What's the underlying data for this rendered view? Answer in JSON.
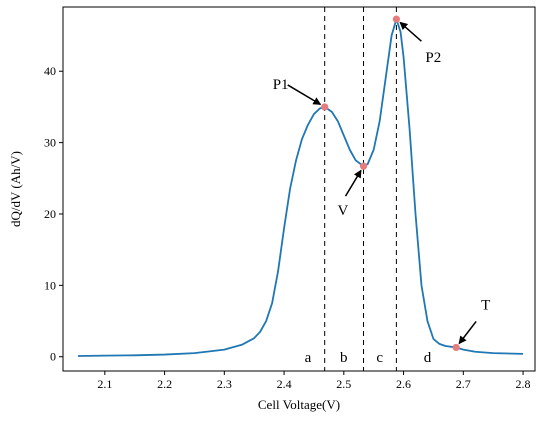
{
  "chart_data": {
    "type": "line",
    "title": "",
    "xlabel": "Cell Voltage(V)",
    "ylabel": "dQ/dV (Ah/V)",
    "xlim": [
      2.03,
      2.82
    ],
    "ylim": [
      -2,
      49
    ],
    "grid": false,
    "x_ticks": [
      2.1,
      2.2,
      2.3,
      2.4,
      2.5,
      2.6,
      2.7,
      2.8
    ],
    "x_tick_labels": [
      "2.1",
      "2.2",
      "2.3",
      "2.4",
      "2.5",
      "2.6",
      "2.7",
      "2.8"
    ],
    "y_ticks": [
      0,
      10,
      20,
      30,
      40
    ],
    "y_tick_labels": [
      "0",
      "10",
      "20",
      "30",
      "40"
    ],
    "series": [
      {
        "color": "#1f77b4",
        "points": [
          [
            2.055,
            0.1
          ],
          [
            2.1,
            0.15
          ],
          [
            2.15,
            0.2
          ],
          [
            2.2,
            0.3
          ],
          [
            2.25,
            0.5
          ],
          [
            2.3,
            1.0
          ],
          [
            2.33,
            1.7
          ],
          [
            2.35,
            2.6
          ],
          [
            2.36,
            3.5
          ],
          [
            2.37,
            5.0
          ],
          [
            2.38,
            7.5
          ],
          [
            2.39,
            12.0
          ],
          [
            2.4,
            18.0
          ],
          [
            2.41,
            23.5
          ],
          [
            2.42,
            27.5
          ],
          [
            2.43,
            30.5
          ],
          [
            2.44,
            32.5
          ],
          [
            2.45,
            34.0
          ],
          [
            2.46,
            34.8
          ],
          [
            2.468,
            35.0
          ],
          [
            2.48,
            34.3
          ],
          [
            2.49,
            33.0
          ],
          [
            2.5,
            31.0
          ],
          [
            2.51,
            29.0
          ],
          [
            2.52,
            27.5
          ],
          [
            2.533,
            26.7
          ],
          [
            2.54,
            27.0
          ],
          [
            2.55,
            29.0
          ],
          [
            2.56,
            33.0
          ],
          [
            2.57,
            39.0
          ],
          [
            2.58,
            45.0
          ],
          [
            2.588,
            47.3
          ],
          [
            2.595,
            45.5
          ],
          [
            2.6,
            42.0
          ],
          [
            2.61,
            32.0
          ],
          [
            2.62,
            20.0
          ],
          [
            2.63,
            10.0
          ],
          [
            2.64,
            5.0
          ],
          [
            2.65,
            2.5
          ],
          [
            2.66,
            1.8
          ],
          [
            2.67,
            1.5
          ],
          [
            2.688,
            1.3
          ],
          [
            2.7,
            1.0
          ],
          [
            2.72,
            0.7
          ],
          [
            2.75,
            0.5
          ],
          [
            2.8,
            0.4
          ]
        ]
      }
    ],
    "marker_color": "#e67c7c",
    "markers": [
      {
        "name": "P1",
        "x": 2.468,
        "y": 35.0
      },
      {
        "name": "V",
        "x": 2.533,
        "y": 26.7
      },
      {
        "name": "P2",
        "x": 2.588,
        "y": 47.3
      },
      {
        "name": "T",
        "x": 2.688,
        "y": 1.3
      }
    ],
    "vlines": [
      2.468,
      2.533,
      2.588
    ],
    "regions": [
      {
        "label": "a",
        "x": 2.44
      },
      {
        "label": "b",
        "x": 2.5
      },
      {
        "label": "c",
        "x": 2.56
      },
      {
        "label": "d",
        "x": 2.64
      }
    ],
    "annotations": [
      {
        "text": "P1",
        "target_x": 2.468,
        "target_y": 35.0
      },
      {
        "text": "V",
        "target_x": 2.533,
        "target_y": 26.7
      },
      {
        "text": "P2",
        "target_x": 2.588,
        "target_y": 47.3
      },
      {
        "text": "T",
        "target_x": 2.688,
        "target_y": 1.3
      }
    ]
  }
}
